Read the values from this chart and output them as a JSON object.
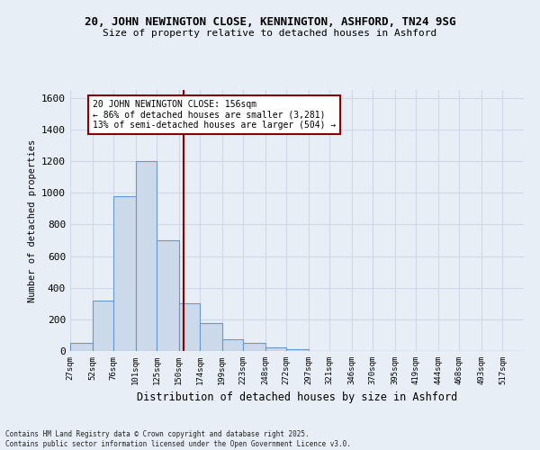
{
  "title1": "20, JOHN NEWINGTON CLOSE, KENNINGTON, ASHFORD, TN24 9SG",
  "title2": "Size of property relative to detached houses in Ashford",
  "xlabel": "Distribution of detached houses by size in Ashford",
  "ylabel": "Number of detached properties",
  "bins": [
    27,
    52,
    76,
    101,
    125,
    150,
    174,
    199,
    223,
    248,
    272,
    297,
    321,
    346,
    370,
    395,
    419,
    444,
    468,
    493,
    517
  ],
  "bar_heights": [
    50,
    320,
    980,
    1200,
    700,
    300,
    175,
    75,
    50,
    20,
    10,
    0,
    0,
    0,
    0,
    0,
    0,
    0,
    0,
    0,
    0
  ],
  "bar_color": "#ccd9ea",
  "bar_edge_color": "#6699cc",
  "grid_color": "#d0d8e8",
  "background_color": "#e8eef5",
  "vline_x": 156,
  "vline_color": "#8b0000",
  "annotation_text": "20 JOHN NEWINGTON CLOSE: 156sqm\n← 86% of detached houses are smaller (3,281)\n13% of semi-detached houses are larger (504) →",
  "annotation_box_color": "#ffffff",
  "annotation_box_edge": "#8b0000",
  "ylim": [
    0,
    1650
  ],
  "yticks": [
    0,
    200,
    400,
    600,
    800,
    1000,
    1200,
    1400,
    1600
  ],
  "footer": "Contains HM Land Registry data © Crown copyright and database right 2025.\nContains public sector information licensed under the Open Government Licence v3.0."
}
